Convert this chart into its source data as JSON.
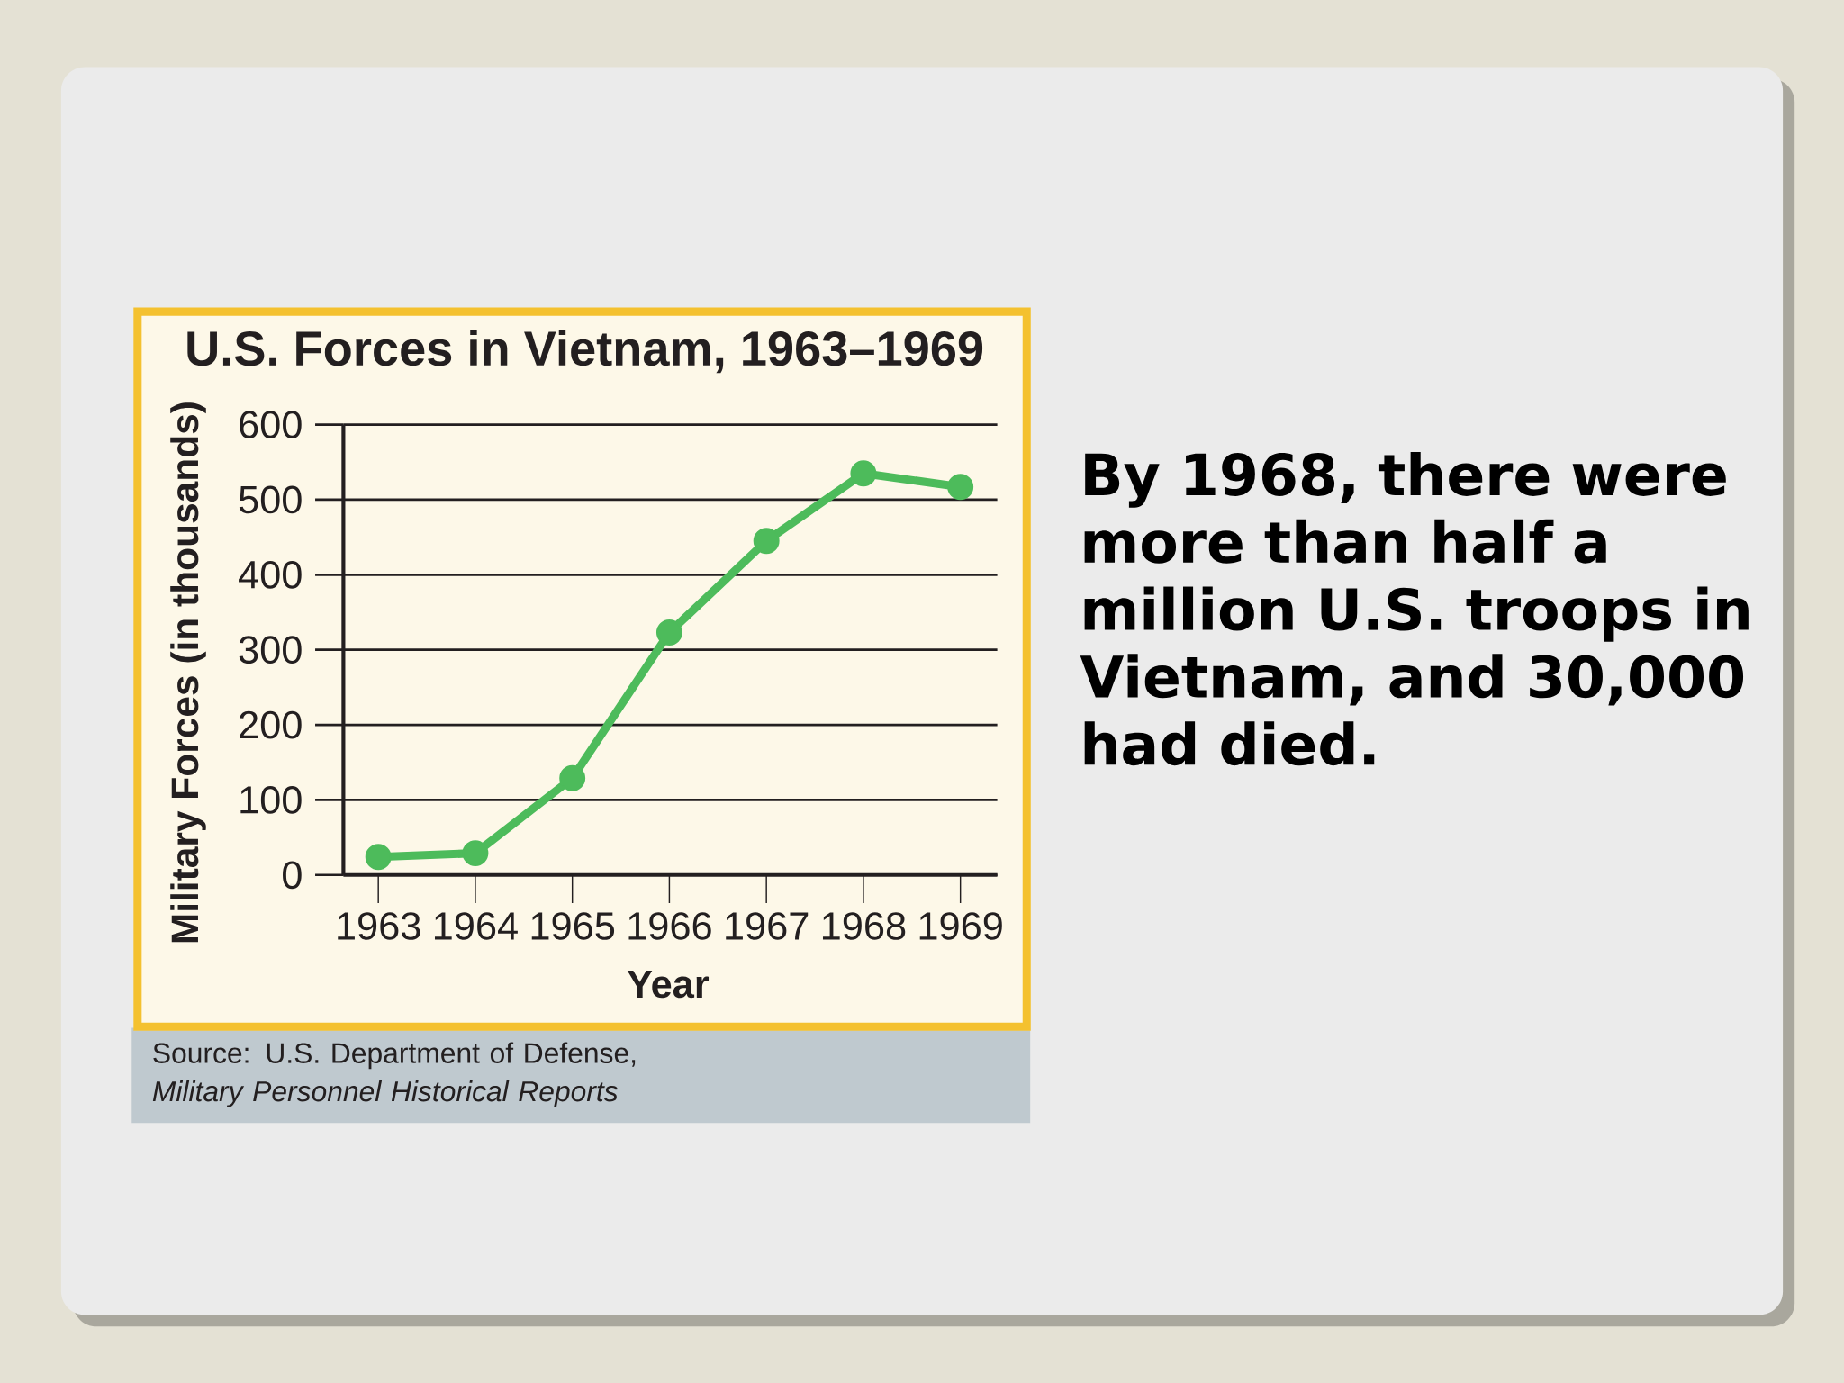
{
  "chart_data": {
    "type": "line",
    "title": "U.S. Forces in Vietnam, 1963–1969",
    "xlabel": "Year",
    "ylabel": "Military Forces (in thousands)",
    "categories": [
      "1963",
      "1964",
      "1965",
      "1966",
      "1967",
      "1968",
      "1969"
    ],
    "series": [
      {
        "color": "#4dbb5b",
        "values": [
          24,
          29,
          129,
          323,
          445,
          535,
          517
        ]
      }
    ],
    "ylim": [
      0,
      600
    ],
    "yticks": [
      0,
      100,
      200,
      300,
      400,
      500,
      600
    ],
    "grid": "y",
    "marker": "circle",
    "line_style": "solid",
    "annotations": [
      "Source: U.S. Department of Defense, *Military Personnel Historical Reports*",
      "By 1968, there were more than half a million U.S. troops in Vietnam, and 30,000 had died."
    ]
  }
}
